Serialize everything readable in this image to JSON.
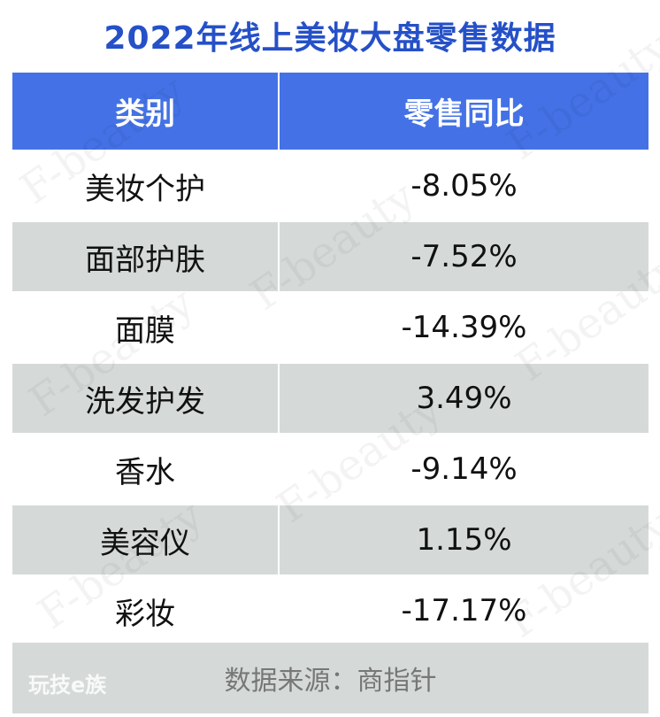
{
  "title": "2022年线上美妆大盘零售数据",
  "table": {
    "headers": [
      "类别",
      "零售同比"
    ],
    "rows": [
      [
        "美妆个护",
        "-8.05%"
      ],
      [
        "面部护肤",
        "-7.52%"
      ],
      [
        "面膜",
        "-14.39%"
      ],
      [
        "洗发护发",
        "3.49%"
      ],
      [
        "香水",
        "-9.14%"
      ],
      [
        "美容仪",
        "1.15%"
      ],
      [
        "彩妆",
        "-17.17%"
      ]
    ]
  },
  "footer": {
    "source": "数据来源：商指针",
    "logo_text": "玩技e族"
  },
  "watermark": "F-beauty",
  "colors": {
    "title": "#2550c8",
    "header_bg": "#4472e6",
    "stripe_bg": "#d5dad9"
  }
}
